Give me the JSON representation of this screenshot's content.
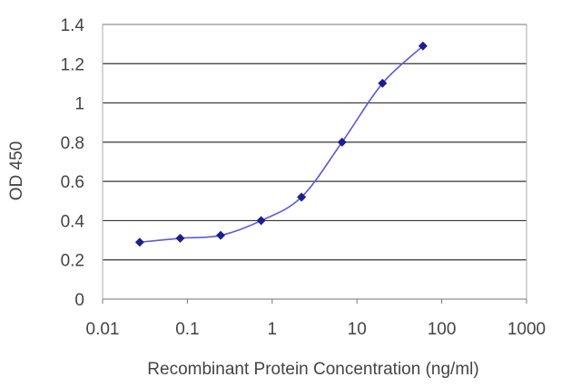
{
  "chart_data": {
    "type": "line",
    "xlabel": "Recombinant Protein Concentration (ng/ml)",
    "ylabel": "OD 450",
    "x_scale": "log",
    "xlim": [
      0.01,
      1000
    ],
    "ylim": [
      0,
      1.4
    ],
    "x_ticks": [
      "0.01",
      "0.1",
      "1",
      "10",
      "100",
      "1000"
    ],
    "y_ticks": [
      "0",
      "0.2",
      "0.4",
      "0.6",
      "0.8",
      "1",
      "1.2",
      "1.4"
    ],
    "grid": "horizontal",
    "legend": "none",
    "series": [
      {
        "x": [
          0.0274,
          0.0823,
          0.247,
          0.741,
          2.22,
          6.67,
          20,
          60
        ],
        "y": [
          0.29,
          0.31,
          0.325,
          0.4,
          0.52,
          0.8,
          1.1,
          1.29
        ]
      }
    ],
    "colors": {
      "line": "#5b5bd6",
      "marker": "#1e1e8c",
      "grid": "#333333",
      "plot_border": "#aaaaaa"
    }
  }
}
